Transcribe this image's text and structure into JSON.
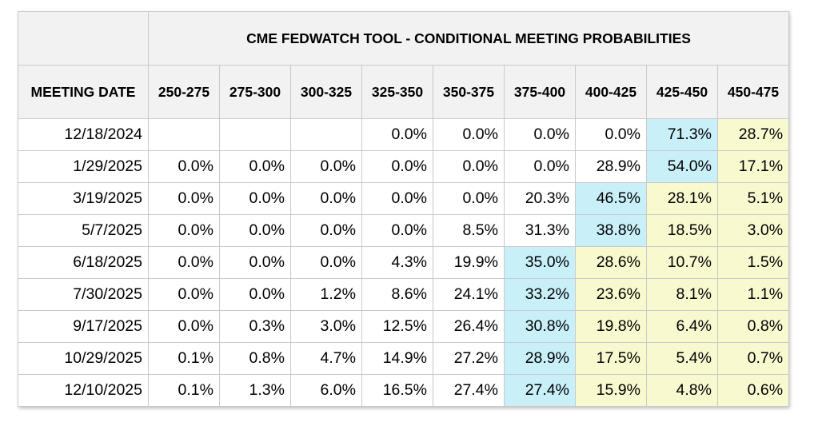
{
  "table": {
    "title": "CME FEDWATCH TOOL - CONDITIONAL MEETING PROBABILITIES",
    "date_header": "MEETING DATE",
    "columns": [
      "250-275",
      "275-300",
      "300-325",
      "325-350",
      "350-375",
      "375-400",
      "400-425",
      "425-450",
      "450-475"
    ],
    "highlight_colors": {
      "max": "#c9f0f9",
      "above": "#f9f9d0"
    },
    "rows": [
      {
        "date": "12/18/2024",
        "cells": [
          {
            "v": "",
            "h": ""
          },
          {
            "v": "",
            "h": ""
          },
          {
            "v": "",
            "h": ""
          },
          {
            "v": "0.0%",
            "h": ""
          },
          {
            "v": "0.0%",
            "h": ""
          },
          {
            "v": "0.0%",
            "h": ""
          },
          {
            "v": "0.0%",
            "h": ""
          },
          {
            "v": "71.3%",
            "h": "max"
          },
          {
            "v": "28.7%",
            "h": "above"
          }
        ]
      },
      {
        "date": "1/29/2025",
        "cells": [
          {
            "v": "0.0%",
            "h": ""
          },
          {
            "v": "0.0%",
            "h": ""
          },
          {
            "v": "0.0%",
            "h": ""
          },
          {
            "v": "0.0%",
            "h": ""
          },
          {
            "v": "0.0%",
            "h": ""
          },
          {
            "v": "0.0%",
            "h": ""
          },
          {
            "v": "28.9%",
            "h": ""
          },
          {
            "v": "54.0%",
            "h": "max"
          },
          {
            "v": "17.1%",
            "h": "above"
          }
        ]
      },
      {
        "date": "3/19/2025",
        "cells": [
          {
            "v": "0.0%",
            "h": ""
          },
          {
            "v": "0.0%",
            "h": ""
          },
          {
            "v": "0.0%",
            "h": ""
          },
          {
            "v": "0.0%",
            "h": ""
          },
          {
            "v": "0.0%",
            "h": ""
          },
          {
            "v": "20.3%",
            "h": ""
          },
          {
            "v": "46.5%",
            "h": "max"
          },
          {
            "v": "28.1%",
            "h": "above"
          },
          {
            "v": "5.1%",
            "h": "above"
          }
        ]
      },
      {
        "date": "5/7/2025",
        "cells": [
          {
            "v": "0.0%",
            "h": ""
          },
          {
            "v": "0.0%",
            "h": ""
          },
          {
            "v": "0.0%",
            "h": ""
          },
          {
            "v": "0.0%",
            "h": ""
          },
          {
            "v": "8.5%",
            "h": ""
          },
          {
            "v": "31.3%",
            "h": ""
          },
          {
            "v": "38.8%",
            "h": "max"
          },
          {
            "v": "18.5%",
            "h": "above"
          },
          {
            "v": "3.0%",
            "h": "above"
          }
        ]
      },
      {
        "date": "6/18/2025",
        "cells": [
          {
            "v": "0.0%",
            "h": ""
          },
          {
            "v": "0.0%",
            "h": ""
          },
          {
            "v": "0.0%",
            "h": ""
          },
          {
            "v": "4.3%",
            "h": ""
          },
          {
            "v": "19.9%",
            "h": ""
          },
          {
            "v": "35.0%",
            "h": "max"
          },
          {
            "v": "28.6%",
            "h": "above"
          },
          {
            "v": "10.7%",
            "h": "above"
          },
          {
            "v": "1.5%",
            "h": "above"
          }
        ]
      },
      {
        "date": "7/30/2025",
        "cells": [
          {
            "v": "0.0%",
            "h": ""
          },
          {
            "v": "0.0%",
            "h": ""
          },
          {
            "v": "1.2%",
            "h": ""
          },
          {
            "v": "8.6%",
            "h": ""
          },
          {
            "v": "24.1%",
            "h": ""
          },
          {
            "v": "33.2%",
            "h": "max"
          },
          {
            "v": "23.6%",
            "h": "above"
          },
          {
            "v": "8.1%",
            "h": "above"
          },
          {
            "v": "1.1%",
            "h": "above"
          }
        ]
      },
      {
        "date": "9/17/2025",
        "cells": [
          {
            "v": "0.0%",
            "h": ""
          },
          {
            "v": "0.3%",
            "h": ""
          },
          {
            "v": "3.0%",
            "h": ""
          },
          {
            "v": "12.5%",
            "h": ""
          },
          {
            "v": "26.4%",
            "h": ""
          },
          {
            "v": "30.8%",
            "h": "max"
          },
          {
            "v": "19.8%",
            "h": "above"
          },
          {
            "v": "6.4%",
            "h": "above"
          },
          {
            "v": "0.8%",
            "h": "above"
          }
        ]
      },
      {
        "date": "10/29/2025",
        "cells": [
          {
            "v": "0.1%",
            "h": ""
          },
          {
            "v": "0.8%",
            "h": ""
          },
          {
            "v": "4.7%",
            "h": ""
          },
          {
            "v": "14.9%",
            "h": ""
          },
          {
            "v": "27.2%",
            "h": ""
          },
          {
            "v": "28.9%",
            "h": "max"
          },
          {
            "v": "17.5%",
            "h": "above"
          },
          {
            "v": "5.4%",
            "h": "above"
          },
          {
            "v": "0.7%",
            "h": "above"
          }
        ]
      },
      {
        "date": "12/10/2025",
        "cells": [
          {
            "v": "0.1%",
            "h": ""
          },
          {
            "v": "1.3%",
            "h": ""
          },
          {
            "v": "6.0%",
            "h": ""
          },
          {
            "v": "16.5%",
            "h": ""
          },
          {
            "v": "27.4%",
            "h": ""
          },
          {
            "v": "27.4%",
            "h": "max"
          },
          {
            "v": "15.9%",
            "h": "above"
          },
          {
            "v": "4.8%",
            "h": "above"
          },
          {
            "v": "0.6%",
            "h": "above"
          }
        ]
      }
    ]
  }
}
